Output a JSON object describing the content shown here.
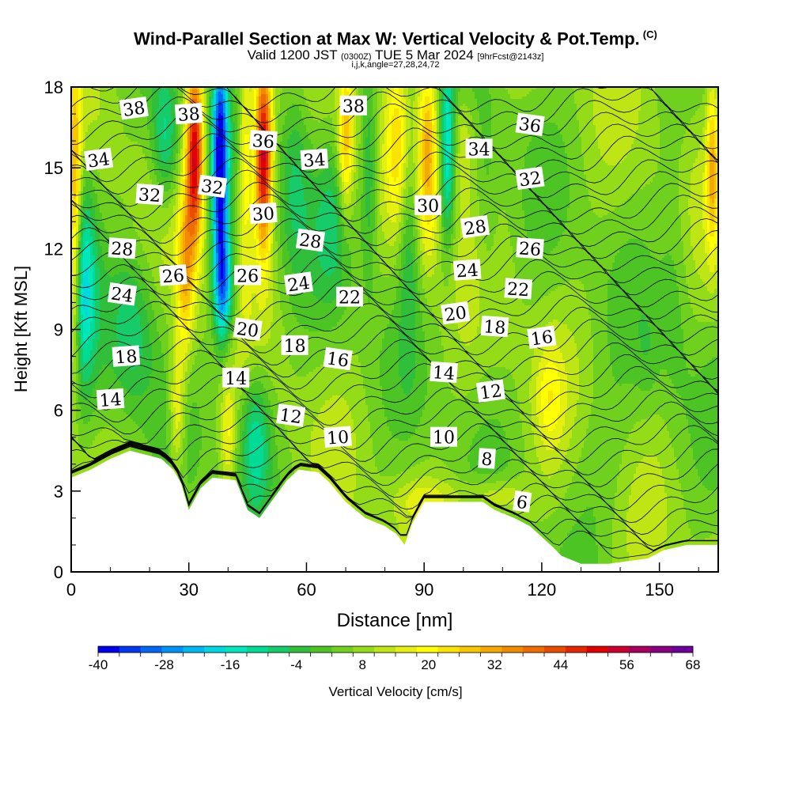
{
  "title": {
    "main": "Wind-Parallel Section at Max W: Vertical Velocity & Pot.Temp.",
    "copyright": "(C)",
    "valid_prefix": "Valid 1200 JST",
    "valid_utc": "(0300Z)",
    "valid_date": "TUE 5 Mar 2024",
    "forecast": "[9hrFcst@2143z]",
    "indices": "i,j,k,angle=27,28,24,72"
  },
  "chart_data": {
    "type": "contour",
    "title": "Wind-Parallel Section at Max W: Vertical Velocity & Pot.Temp.",
    "xlabel": "Distance [nm]",
    "ylabel": "Height [Kft MSL]",
    "xlim": [
      0,
      165
    ],
    "ylim": [
      0,
      18
    ],
    "xticks": [
      "0",
      "30",
      "60",
      "90",
      "120",
      "150"
    ],
    "yticks": [
      "0",
      "3",
      "6",
      "9",
      "12",
      "15",
      "18"
    ],
    "colorbar": {
      "label": "Vertical Velocity [cm/s]",
      "min": -40,
      "max": 68,
      "step": 4,
      "tick_labels": [
        "-40",
        "-28",
        "-16",
        "-4",
        "8",
        "20",
        "32",
        "44",
        "56",
        "68"
      ],
      "colors": [
        "#0000e8",
        "#0037f0",
        "#0068f4",
        "#0093f5",
        "#00b8f0",
        "#00d8e0",
        "#00e6bd",
        "#00dc96",
        "#16cc6a",
        "#2fbf3b",
        "#4cc524",
        "#6fd11d",
        "#95dc18",
        "#bfe614",
        "#e6f010",
        "#ffff00",
        "#fbe300",
        "#f8c600",
        "#f5a800",
        "#f28a00",
        "#ee6c00",
        "#ea4c00",
        "#e62600",
        "#e10000",
        "#cc0030",
        "#a80060",
        "#8a0080",
        "#6a0098"
      ]
    },
    "terrain_kft": [
      [
        0,
        3.5
      ],
      [
        5,
        3.8
      ],
      [
        10,
        4.2
      ],
      [
        15,
        4.5
      ],
      [
        23,
        4.2
      ],
      [
        26,
        3.8
      ],
      [
        28,
        3.3
      ],
      [
        30,
        2.3
      ],
      [
        33,
        3.1
      ],
      [
        36,
        3.5
      ],
      [
        42,
        3.4
      ],
      [
        45,
        2.3
      ],
      [
        48,
        2.0
      ],
      [
        51,
        2.6
      ],
      [
        55,
        3.4
      ],
      [
        58,
        3.8
      ],
      [
        63,
        3.7
      ],
      [
        66,
        3.3
      ],
      [
        70,
        2.6
      ],
      [
        75,
        2.0
      ],
      [
        80,
        1.7
      ],
      [
        83,
        1.4
      ],
      [
        85,
        1.0
      ],
      [
        87,
        1.8
      ],
      [
        90,
        2.6
      ],
      [
        100,
        2.6
      ],
      [
        105,
        2.6
      ],
      [
        108,
        2.3
      ],
      [
        113,
        2.0
      ],
      [
        117,
        1.7
      ],
      [
        120,
        1.3
      ],
      [
        123,
        0.9
      ],
      [
        125,
        0.6
      ],
      [
        130,
        0.3
      ],
      [
        137,
        0.3
      ],
      [
        147,
        0.5
      ],
      [
        151,
        0.8
      ],
      [
        157,
        1.0
      ],
      [
        165,
        1.0
      ]
    ],
    "theta_labels": [
      {
        "text": "38",
        "x": 16,
        "y": 17.2
      },
      {
        "text": "38",
        "x": 30,
        "y": 17.0
      },
      {
        "text": "38",
        "x": 72,
        "y": 17.3
      },
      {
        "text": "36",
        "x": 49,
        "y": 16.0
      },
      {
        "text": "36",
        "x": 117,
        "y": 16.6
      },
      {
        "text": "34",
        "x": 7,
        "y": 15.3
      },
      {
        "text": "34",
        "x": 62,
        "y": 15.3
      },
      {
        "text": "34",
        "x": 104,
        "y": 15.7
      },
      {
        "text": "32",
        "x": 20,
        "y": 14.0
      },
      {
        "text": "32",
        "x": 36,
        "y": 14.3
      },
      {
        "text": "32",
        "x": 117,
        "y": 14.6
      },
      {
        "text": "30",
        "x": 49,
        "y": 13.3
      },
      {
        "text": "30",
        "x": 91,
        "y": 13.6
      },
      {
        "text": "28",
        "x": 13,
        "y": 12.0
      },
      {
        "text": "28",
        "x": 61,
        "y": 12.3
      },
      {
        "text": "28",
        "x": 103,
        "y": 12.8
      },
      {
        "text": "26",
        "x": 26,
        "y": 11.0
      },
      {
        "text": "26",
        "x": 45,
        "y": 11.0
      },
      {
        "text": "26",
        "x": 117,
        "y": 12.0
      },
      {
        "text": "24",
        "x": 13,
        "y": 10.3
      },
      {
        "text": "24",
        "x": 58,
        "y": 10.7
      },
      {
        "text": "24",
        "x": 101,
        "y": 11.2
      },
      {
        "text": "22",
        "x": 71,
        "y": 10.2
      },
      {
        "text": "22",
        "x": 114,
        "y": 10.5
      },
      {
        "text": "20",
        "x": 45,
        "y": 9.0
      },
      {
        "text": "20",
        "x": 98,
        "y": 9.6
      },
      {
        "text": "18",
        "x": 14,
        "y": 8.0
      },
      {
        "text": "18",
        "x": 57,
        "y": 8.4
      },
      {
        "text": "18",
        "x": 108,
        "y": 9.1
      },
      {
        "text": "16",
        "x": 68,
        "y": 7.9
      },
      {
        "text": "16",
        "x": 120,
        "y": 8.7
      },
      {
        "text": "14",
        "x": 10,
        "y": 6.4
      },
      {
        "text": "14",
        "x": 42,
        "y": 7.2
      },
      {
        "text": "14",
        "x": 95,
        "y": 7.4
      },
      {
        "text": "12",
        "x": 56,
        "y": 5.8
      },
      {
        "text": "12",
        "x": 107,
        "y": 6.7
      },
      {
        "text": "10",
        "x": 68,
        "y": 5.0
      },
      {
        "text": "10",
        "x": 95,
        "y": 5.0
      },
      {
        "text": "8",
        "x": 106,
        "y": 4.2
      },
      {
        "text": "6",
        "x": 115,
        "y": 2.6
      }
    ]
  }
}
